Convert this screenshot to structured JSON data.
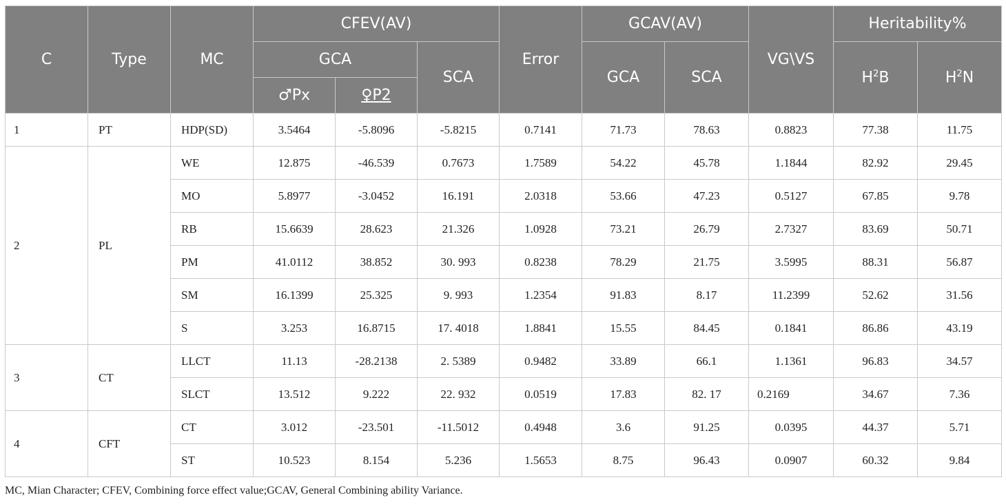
{
  "header": {
    "c": "C",
    "type": "Type",
    "mc": "MC",
    "cfev": "CFEV(AV)",
    "gca": "GCA",
    "sca": "SCA",
    "px": "♂Px",
    "p2": "♀P2",
    "error": "Error",
    "gcav": "GCAV(AV)",
    "gcav_gca": "GCA",
    "gcav_sca": "SCA",
    "vgvs": "VG\\VS",
    "heritability": "Heritability%",
    "h2b_base": "H",
    "h2b_sup": "2",
    "h2b_end": "B",
    "h2n_base": "H",
    "h2n_sup": "2",
    "h2n_end": "N"
  },
  "groups": [
    {
      "c": "1",
      "type": "PT"
    },
    {
      "c": "2",
      "type": "PL"
    },
    {
      "c": "3",
      "type": "CT"
    },
    {
      "c": "4",
      "type": "CFT"
    }
  ],
  "rows": [
    {
      "mc": "HDP(SD)",
      "px": "3.5464",
      "p2": "-5.8096",
      "sca": "-5.8215",
      "error": "0.7141",
      "gca2": "71.73",
      "sca2": "78.63",
      "vgvs": "0.8823",
      "h2b": "77.38",
      "h2n": "11.75"
    },
    {
      "mc": "WE",
      "px": "12.875",
      "p2": "-46.539",
      "sca": "0.7673",
      "error": "1.7589",
      "gca2": "54.22",
      "sca2": "45.78",
      "vgvs": "1.1844",
      "h2b": "82.92",
      "h2n": "29.45"
    },
    {
      "mc": "MO",
      "px": "5.8977",
      "p2": "-3.0452",
      "sca": "16.191",
      "error": "2.0318",
      "gca2": "53.66",
      "sca2": "47.23",
      "vgvs": "0.5127",
      "h2b": "67.85",
      "h2n": "9.78"
    },
    {
      "mc": "RB",
      "px": "15.6639",
      "p2": "28.623",
      "sca": "21.326",
      "error": "1.0928",
      "gca2": "73.21",
      "sca2": "26.79",
      "vgvs": "2.7327",
      "h2b": "83.69",
      "h2n": "50.71"
    },
    {
      "mc": "PM",
      "px": "41.0112",
      "p2": "38.852",
      "sca": "30. 993",
      "error": "0.8238",
      "gca2": "78.29",
      "sca2": "21.75",
      "vgvs": "3.5995",
      "h2b": "88.31",
      "h2n": "56.87"
    },
    {
      "mc": "SM",
      "px": "16.1399",
      "p2": "25.325",
      "sca": "9. 993",
      "error": "1.2354",
      "gca2": "91.83",
      "sca2": "8.17",
      "vgvs": "11.2399",
      "h2b": "52.62",
      "h2n": "31.56"
    },
    {
      "mc": "S",
      "px": "3.253",
      "p2": "16.8715",
      "sca": "17. 4018",
      "error": "1.8841",
      "gca2": "15.55",
      "sca2": "84.45",
      "vgvs": "0.1841",
      "h2b": "86.86",
      "h2n": "43.19"
    },
    {
      "mc": "LLCT",
      "px": "11.13",
      "p2": "-28.2138",
      "sca": "2. 5389",
      "error": "0.9482",
      "gca2": "33.89",
      "sca2": "66.1",
      "vgvs": "1.1361",
      "h2b": "96.83",
      "h2n": "34.57"
    },
    {
      "mc": "SLCT",
      "px": "13.512",
      "p2": "9.222",
      "sca": "22. 932",
      "error": "0.0519",
      "gca2": "17.83",
      "sca2": "82. 17",
      "vgvs": "0.2169",
      "h2b": "34.67",
      "h2n": "7.36"
    },
    {
      "mc": "CT",
      "px": "3.012",
      "p2": "-23.501",
      "sca": "-11.5012",
      "error": "0.4948",
      "gca2": "3.6",
      "sca2": "91.25",
      "vgvs": "0.0395",
      "h2b": "44.37",
      "h2n": "5.71"
    },
    {
      "mc": "ST",
      "px": "10.523",
      "p2": "8.154",
      "sca": "5.236",
      "error": "1.5653",
      "gca2": "8.75",
      "sca2": "96.43",
      "vgvs": "0.0907",
      "h2b": "60.32",
      "h2n": "9.84"
    }
  ],
  "footnote": "MC, Mian Character; CFEV, Combining force effect value;GCAV, General Combining ability Variance."
}
